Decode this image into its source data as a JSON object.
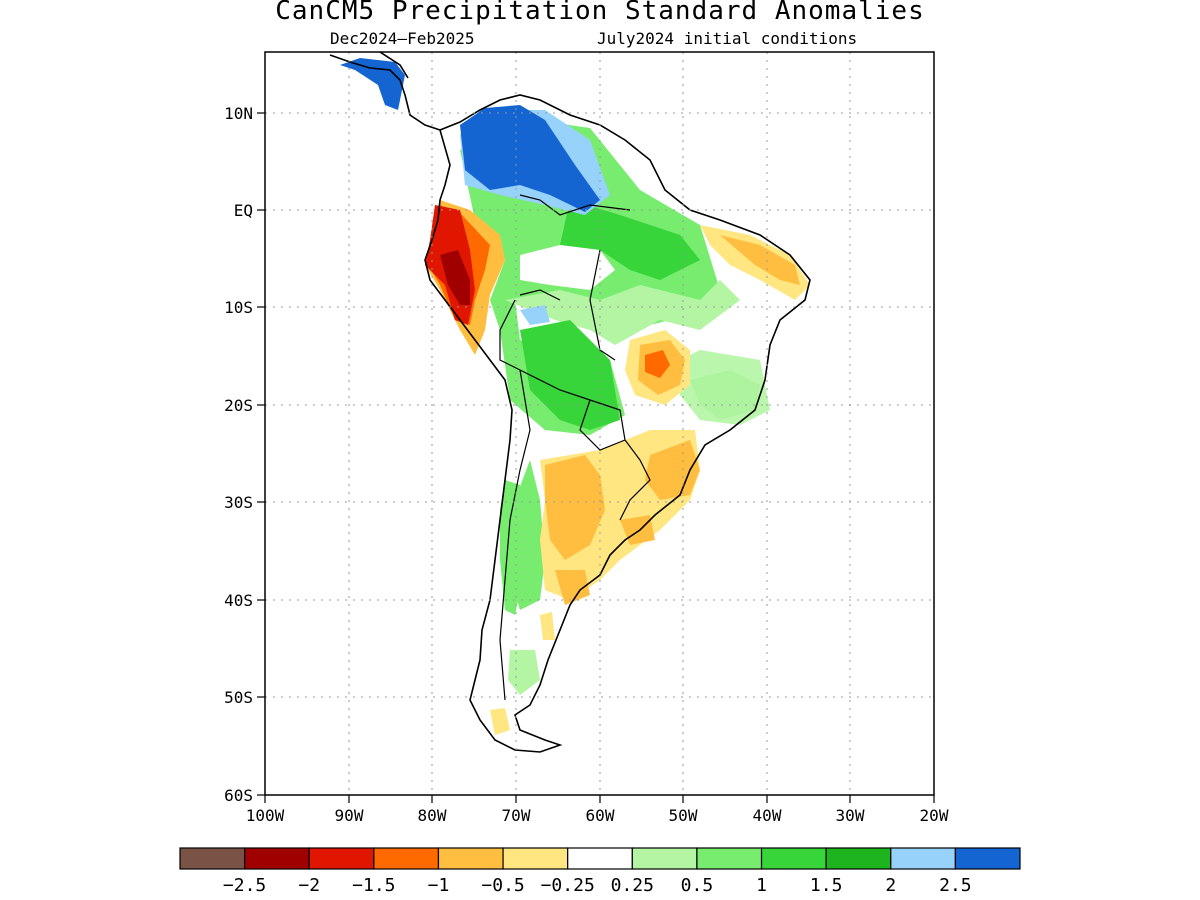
{
  "title": "CanCM5 Precipitation Standard Anomalies",
  "subtitle_left": "Dec2024—Feb2025",
  "subtitle_right": "July2024 initial conditions",
  "axes": {
    "lon_labels": [
      "100W",
      "90W",
      "80W",
      "70W",
      "60W",
      "50W",
      "40W",
      "30W",
      "20W"
    ],
    "lon_values": [
      -100,
      -90,
      -80,
      -70,
      -60,
      -50,
      -40,
      -30,
      -20
    ],
    "lat_labels": [
      "10N",
      "EQ",
      "10S",
      "20S",
      "30S",
      "40S",
      "50S",
      "60S"
    ],
    "lat_values": [
      10,
      0,
      -10,
      -20,
      -30,
      -40,
      -50,
      -60
    ],
    "lon_range": [
      -100,
      -20
    ],
    "lat_range": [
      -60,
      16
    ],
    "grid": "dotted"
  },
  "colorbar": {
    "colors": [
      "#7a5346",
      "#a00000",
      "#e01600",
      "#ff6a00",
      "#ffbe40",
      "#ffe680",
      "#ffffff",
      "#b4f5a4",
      "#78ec6e",
      "#37d43a",
      "#1eb41e",
      "#96d2fa",
      "#1464d2"
    ],
    "labels": [
      "−2.5",
      "−2",
      "−1.5",
      "−1",
      "−0.5",
      "−0.25",
      "0.25",
      "0.5",
      "1",
      "1.5",
      "2",
      "2.5"
    ]
  },
  "colors": {
    "coastline": "#000000",
    "grid": "#999999"
  }
}
